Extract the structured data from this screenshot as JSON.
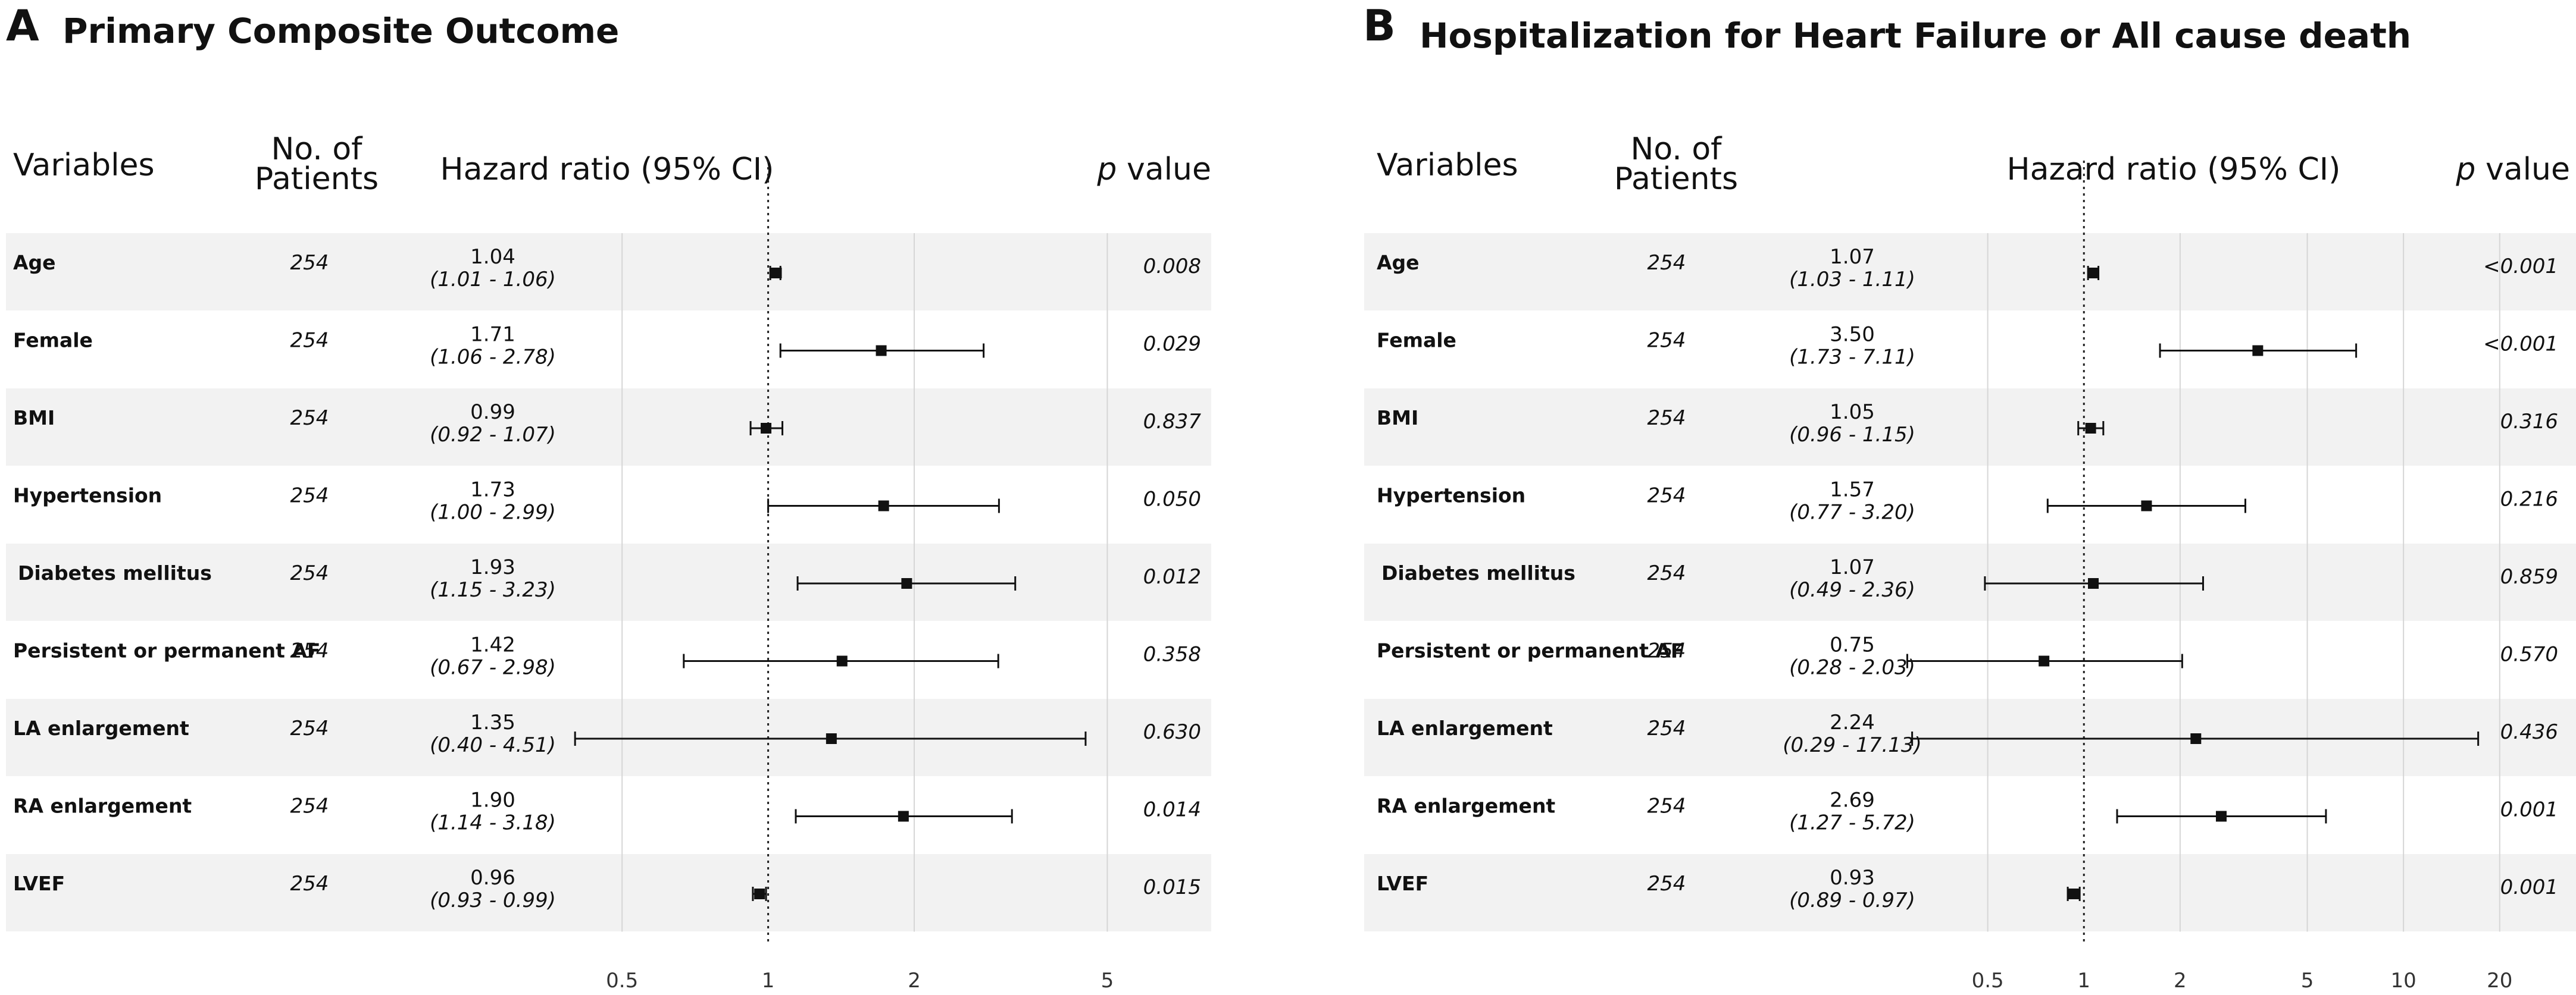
{
  "chart_data": [
    {
      "type": "forest",
      "panel_letter": "A",
      "title": "Primary Composite Outcome",
      "headers": {
        "variables": "Variables",
        "patients_line1": "No. of",
        "patients_line2": "Patients",
        "hr": "Hazard ratio  (95% CI)",
        "p_italic": "p",
        "p_rest": " value"
      },
      "x_scale": "log",
      "xlim": [
        0.38,
        6.0
      ],
      "reference_line": 1,
      "ticks": [
        0.5,
        1,
        2,
        5
      ],
      "tick_labels": [
        "0.5",
        "1",
        "2",
        "5"
      ],
      "rows": [
        {
          "variable": "Age",
          "n": "254",
          "hr_text": "1.04",
          "ci_text": "(1.01 - 1.06)",
          "p": "0.008",
          "hr": 1.04,
          "lo": 1.01,
          "hi": 1.06
        },
        {
          "variable": "Female",
          "n": "254",
          "hr_text": "1.71",
          "ci_text": "(1.06 - 2.78)",
          "p": "0.029",
          "hr": 1.71,
          "lo": 1.06,
          "hi": 2.78
        },
        {
          "variable": "BMI",
          "n": "254",
          "hr_text": "0.99",
          "ci_text": "(0.92 - 1.07)",
          "p": "0.837",
          "hr": 0.99,
          "lo": 0.92,
          "hi": 1.07
        },
        {
          "variable": "Hypertension",
          "n": "254",
          "hr_text": "1.73",
          "ci_text": "(1.00 - 2.99)",
          "p": "0.050",
          "hr": 1.73,
          "lo": 1.0,
          "hi": 2.99
        },
        {
          "variable": "Diabetes mellitus",
          "n": "254",
          "hr_text": "1.93",
          "ci_text": "(1.15 - 3.23)",
          "p": "0.012",
          "hr": 1.93,
          "lo": 1.15,
          "hi": 3.23
        },
        {
          "variable": "Persistent or permanent AF",
          "n": "254",
          "hr_text": "1.42",
          "ci_text": "(0.67 - 2.98)",
          "p": "0.358",
          "hr": 1.42,
          "lo": 0.67,
          "hi": 2.98
        },
        {
          "variable": "LA enlargement",
          "n": "254",
          "hr_text": "1.35",
          "ci_text": "(0.40 - 4.51)",
          "p": "0.630",
          "hr": 1.35,
          "lo": 0.4,
          "hi": 4.51
        },
        {
          "variable": "RA enlargement",
          "n": "254",
          "hr_text": "1.90",
          "ci_text": "(1.14 - 3.18)",
          "p": "0.014",
          "hr": 1.9,
          "lo": 1.14,
          "hi": 3.18
        },
        {
          "variable": "LVEF",
          "n": "254",
          "hr_text": "0.96",
          "ci_text": "(0.93 - 0.99)",
          "p": "0.015",
          "hr": 0.96,
          "lo": 0.93,
          "hi": 0.99
        }
      ]
    },
    {
      "type": "forest",
      "panel_letter": "B",
      "title": "Hospitalization for Heart Failure or All cause death",
      "headers": {
        "variables": "Variables",
        "patients_line1": "No. of",
        "patients_line2": "Patients",
        "hr": "Hazard ratio  (95% CI)",
        "p_italic": "p",
        "p_rest": " value"
      },
      "x_scale": "log",
      "xlim": [
        0.25,
        22.0
      ],
      "reference_line": 1,
      "ticks": [
        0.5,
        1,
        2,
        5,
        10,
        20
      ],
      "tick_labels": [
        "0.5",
        "1",
        "2",
        "5",
        "10",
        "20"
      ],
      "rows": [
        {
          "variable": "Age",
          "n": "254",
          "hr_text": "1.07",
          "ci_text": "(1.03 - 1.11)",
          "p": "<0.001",
          "hr": 1.07,
          "lo": 1.03,
          "hi": 1.11
        },
        {
          "variable": "Female",
          "n": "254",
          "hr_text": "3.50",
          "ci_text": "(1.73 - 7.11)",
          "p": "<0.001",
          "hr": 3.5,
          "lo": 1.73,
          "hi": 7.11
        },
        {
          "variable": "BMI",
          "n": "254",
          "hr_text": "1.05",
          "ci_text": "(0.96 - 1.15)",
          "p": "0.316",
          "hr": 1.05,
          "lo": 0.96,
          "hi": 1.15
        },
        {
          "variable": "Hypertension",
          "n": "254",
          "hr_text": "1.57",
          "ci_text": "(0.77 - 3.20)",
          "p": "0.216",
          "hr": 1.57,
          "lo": 0.77,
          "hi": 3.2
        },
        {
          "variable": "Diabetes mellitus",
          "n": "254",
          "hr_text": "1.07",
          "ci_text": "(0.49 - 2.36)",
          "p": "0.859",
          "hr": 1.07,
          "lo": 0.49,
          "hi": 2.36
        },
        {
          "variable": "Persistent or permanent AF",
          "n": "254",
          "hr_text": "0.75",
          "ci_text": "(0.28 - 2.03)",
          "p": "0.570",
          "hr": 0.75,
          "lo": 0.28,
          "hi": 2.03
        },
        {
          "variable": "LA enlargement",
          "n": "254",
          "hr_text": "2.24",
          "ci_text": "(0.29 - 17.13)",
          "p": "0.436",
          "hr": 2.24,
          "lo": 0.29,
          "hi": 17.13
        },
        {
          "variable": "RA enlargement",
          "n": "254",
          "hr_text": "2.69",
          "ci_text": "(1.27 - 5.72)",
          "p": "0.001",
          "hr": 2.69,
          "lo": 1.27,
          "hi": 5.72
        },
        {
          "variable": "LVEF",
          "n": "254",
          "hr_text": "0.93",
          "ci_text": "(0.89 - 0.97)",
          "p": "0.001",
          "hr": 0.93,
          "lo": 0.89,
          "hi": 0.97
        }
      ]
    }
  ]
}
